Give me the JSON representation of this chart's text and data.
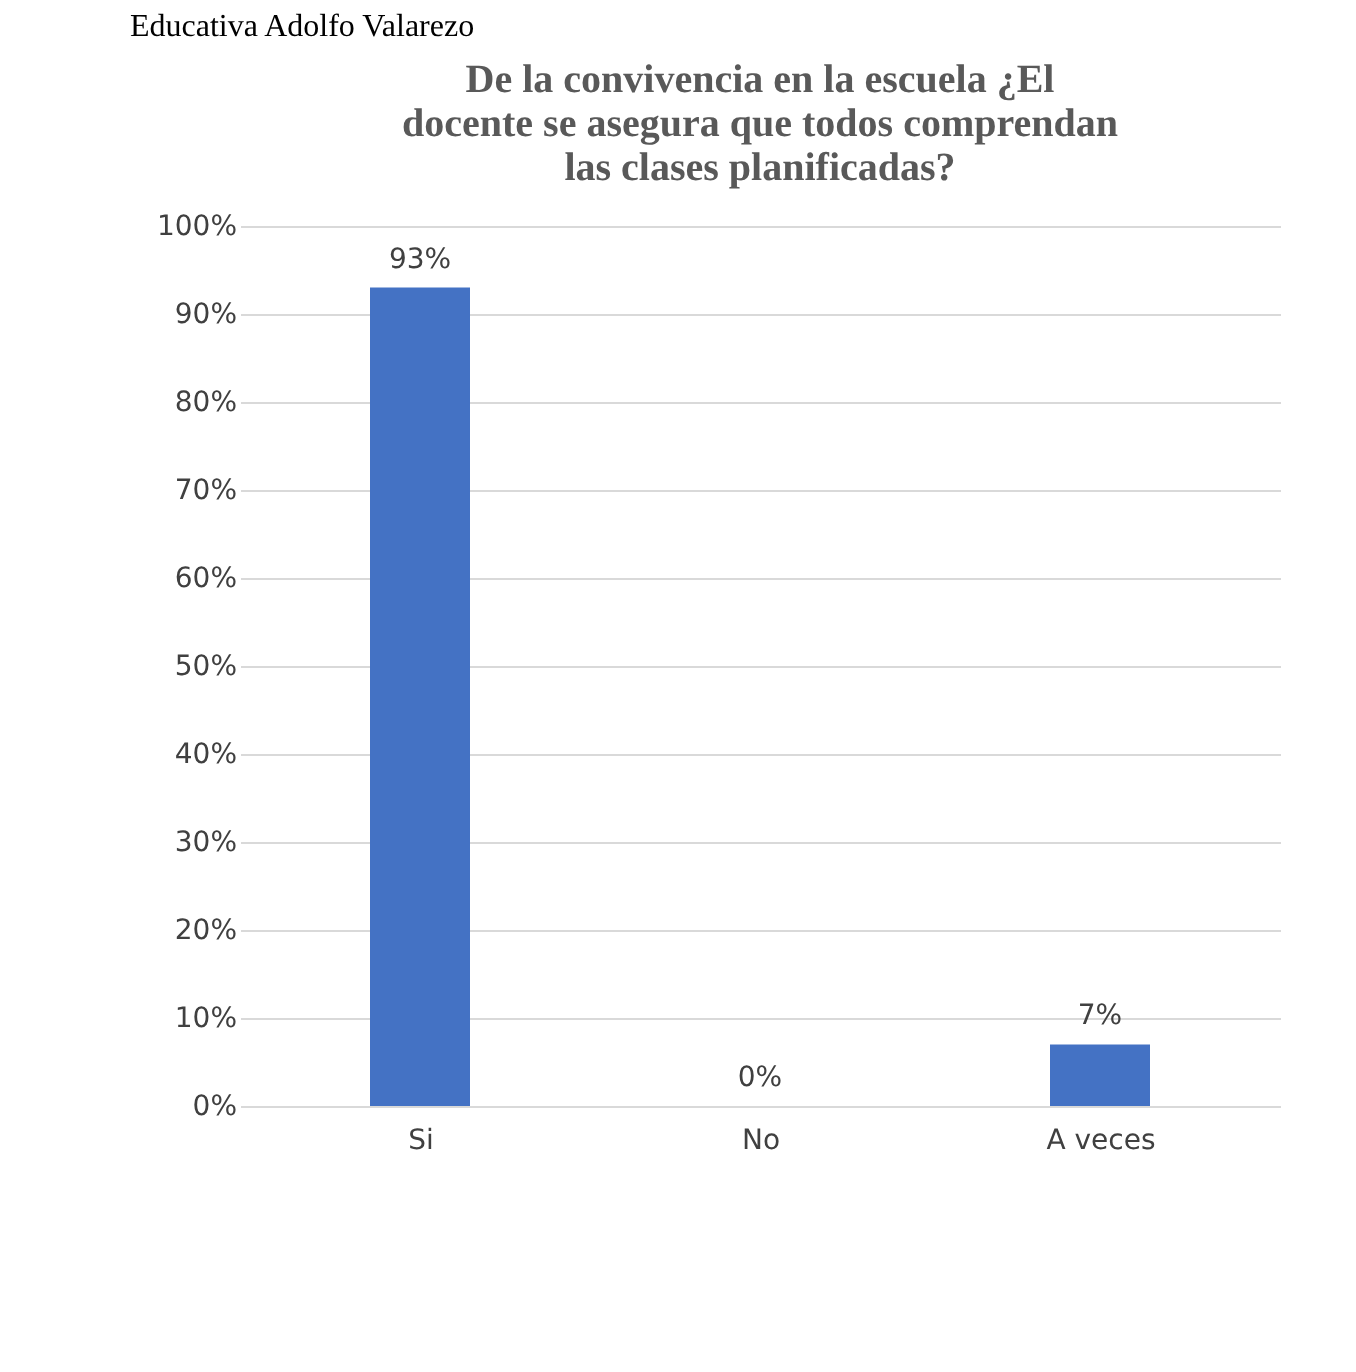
{
  "chart_data": {
    "type": "bar",
    "title": "De la convivencia en la escuela ¿El docente se asegura que todos comprendan las clases planificadas?",
    "annotations": [
      "Educativa Adolfo Valarezo"
    ],
    "categories": [
      "Si",
      "No",
      "A veces"
    ],
    "values": [
      93,
      0,
      7
    ],
    "value_labels": [
      "93%",
      "0%",
      "7%"
    ],
    "color": "#4472c4",
    "ylim": [
      0,
      100
    ],
    "yticks": [
      {
        "value": 0,
        "label": "0%"
      },
      {
        "value": 10,
        "label": "10%"
      },
      {
        "value": 20,
        "label": "20%"
      },
      {
        "value": 30,
        "label": "30%"
      },
      {
        "value": 40,
        "label": "40%"
      },
      {
        "value": 50,
        "label": "50%"
      },
      {
        "value": 60,
        "label": "60%"
      },
      {
        "value": 70,
        "label": "70%"
      },
      {
        "value": 80,
        "label": "80%"
      },
      {
        "value": 90,
        "label": "90%"
      },
      {
        "value": 100,
        "label": "100%"
      }
    ],
    "grid": "y"
  }
}
